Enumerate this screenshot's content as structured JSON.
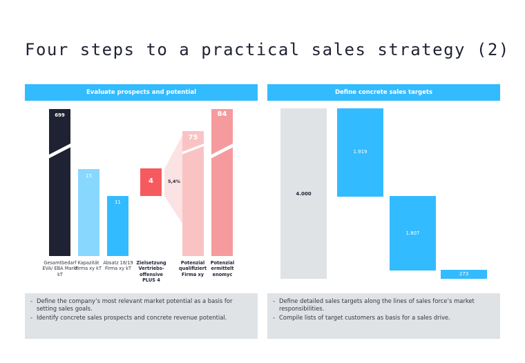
{
  "title": "Four steps to a practical sales strategy (2)",
  "left_panel": {
    "header": "Evaluate prospects and potential",
    "bullets": [
      "Define the company’s most relevant market potential as a basis for setting sales goals.",
      "Identify concrete sales prospects and concrete revenue potential."
    ]
  },
  "right_panel": {
    "header": "Define concrete sales targets",
    "bullets": [
      "Define detailed sales targets along the lines of sales force’s market responsibilities.",
      "Compile lists of target customers as basis for a sales drive."
    ]
  },
  "colors": {
    "navy": "#1f2233",
    "light_blue": "#88d7ff",
    "blue": "#33bbff",
    "red": "#f55a5e",
    "pink": "#f9c3c4",
    "salmon": "#f59b9d",
    "grey": "#dfe3e6"
  },
  "chart_data": [
    {
      "type": "bar",
      "categories": [
        "Gesamtbedarf EVA/ EBA Markt kT",
        "Kapazität Firma xy kT",
        "Absatz 18/19 Firma xy kT",
        "Zielsetzung Vertriebs-offensive PLUS 4",
        "Potenzial qualifiziert Firma xy",
        "Potenzial ermittelt enomyc"
      ],
      "values": [
        699,
        15,
        11,
        4,
        75,
        84
      ],
      "value_labels": [
        "699",
        "15",
        "11",
        "4",
        "75",
        "84"
      ],
      "annotation": "5,4%",
      "axis_break": true
    },
    {
      "type": "bar",
      "subtype": "waterfall",
      "values": [
        4000,
        1919,
        1807,
        273
      ],
      "value_labels": [
        "4.000",
        "1.919",
        "1.807",
        "273"
      ]
    }
  ]
}
